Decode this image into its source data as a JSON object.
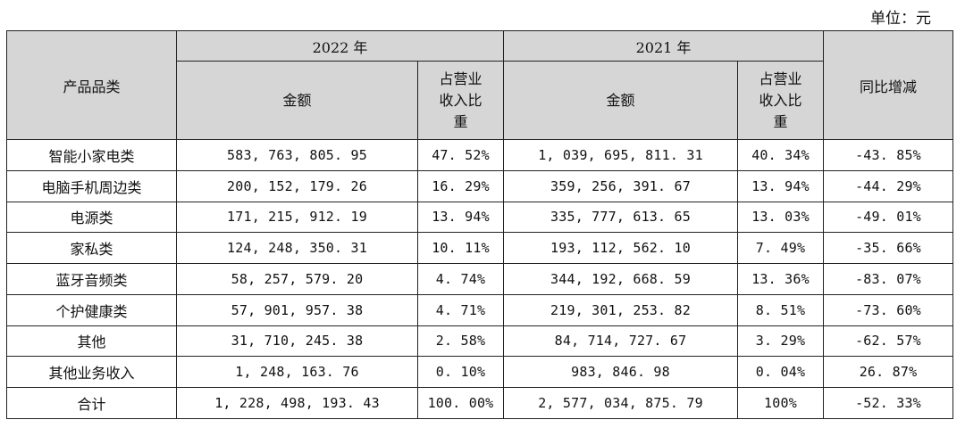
{
  "unit_label": "单位：元",
  "header": {
    "category": "产品品类",
    "year_2022": "2022 年",
    "year_2021": "2021 年",
    "amount": "金额",
    "share": "占营业收入比重",
    "yoy": "同比增减"
  },
  "rows": [
    {
      "category": "智能小家电类",
      "amt2022": "583, 763, 805. 95",
      "pct2022": "47. 52%",
      "amt2021": "1, 039, 695, 811. 31",
      "pct2021": "40. 34%",
      "yoy": "-43. 85%"
    },
    {
      "category": "电脑手机周边类",
      "amt2022": "200, 152, 179. 26",
      "pct2022": "16. 29%",
      "amt2021": "359, 256, 391. 67",
      "pct2021": "13. 94%",
      "yoy": "-44. 29%"
    },
    {
      "category": "电源类",
      "amt2022": "171, 215, 912. 19",
      "pct2022": "13. 94%",
      "amt2021": "335, 777, 613. 65",
      "pct2021": "13. 03%",
      "yoy": "-49. 01%"
    },
    {
      "category": "家私类",
      "amt2022": "124, 248, 350. 31",
      "pct2022": "10. 11%",
      "amt2021": "193, 112, 562. 10",
      "pct2021": "7. 49%",
      "yoy": "-35. 66%"
    },
    {
      "category": "蓝牙音频类",
      "amt2022": "58, 257, 579. 20",
      "pct2022": "4. 74%",
      "amt2021": "344, 192, 668. 59",
      "pct2021": "13. 36%",
      "yoy": "-83. 07%"
    },
    {
      "category": "个护健康类",
      "amt2022": "57, 901, 957. 38",
      "pct2022": "4. 71%",
      "amt2021": "219, 301, 253. 82",
      "pct2021": "8. 51%",
      "yoy": "-73. 60%"
    },
    {
      "category": "其他",
      "amt2022": "31, 710, 245. 38",
      "pct2022": "2. 58%",
      "amt2021": "84, 714, 727. 67",
      "pct2021": "3. 29%",
      "yoy": "-62. 57%"
    },
    {
      "category": "其他业务收入",
      "amt2022": "1, 248, 163. 76",
      "pct2022": "0. 10%",
      "amt2021": "983, 846. 98",
      "pct2021": "0. 04%",
      "yoy": "26. 87%"
    },
    {
      "category": "合计",
      "amt2022": "1, 228, 498, 193. 43",
      "pct2022": "100. 00%",
      "amt2021": "2, 577, 034, 875. 79",
      "pct2021": "100%",
      "yoy": "-52. 33%"
    }
  ]
}
